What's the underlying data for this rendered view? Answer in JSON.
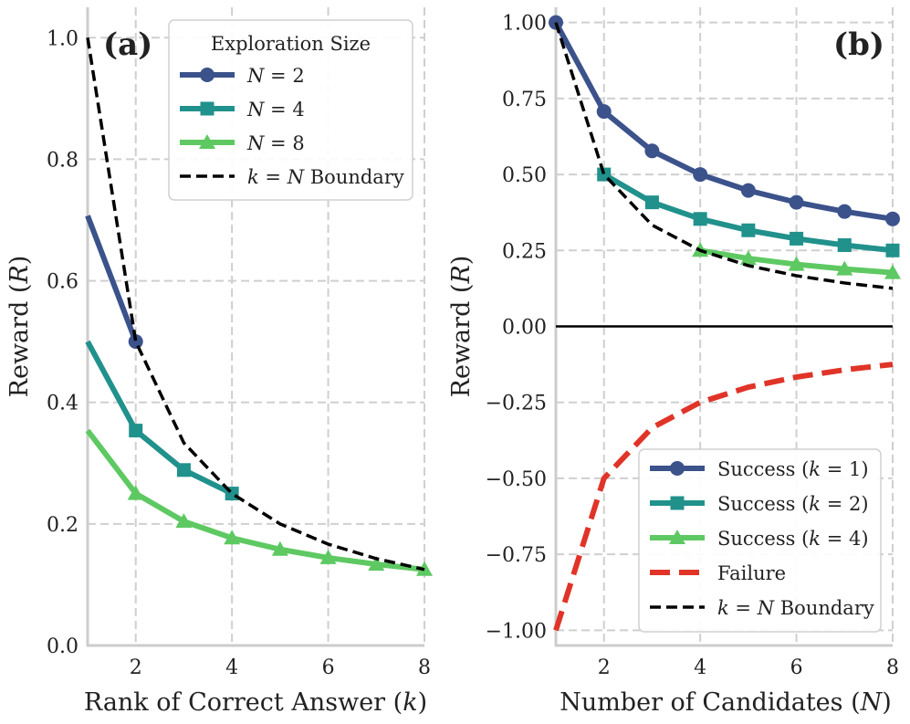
{
  "colors": {
    "n2": "#3b528b",
    "n4": "#21918c",
    "n8": "#5ec962",
    "failure": "#e03428",
    "boundary": "#000000",
    "grid": "#cfcfcf",
    "spine": "#cccccc",
    "zero_line": "#000000"
  },
  "chart_data": [
    {
      "type": "line",
      "panel_label": "(a)",
      "xlabel": "Rank of Correct Answer (",
      "xlabel_var": "k",
      "xlabel_end": ")",
      "ylabel": "Reward (",
      "ylabel_var": "R",
      "ylabel_end": ")",
      "xlim": [
        1,
        8
      ],
      "ylim": [
        0,
        1.05
      ],
      "xticks": [
        2,
        4,
        6,
        8
      ],
      "xtick_labels": [
        "2",
        "4",
        "6",
        "8"
      ],
      "yticks": [
        0,
        0.2,
        0.4,
        0.6,
        0.8,
        1.0
      ],
      "ytick_labels": [
        "0.0",
        "0.2",
        "0.4",
        "0.6",
        "0.8",
        "1.0"
      ],
      "grid": true,
      "legend_title": "Exploration Size",
      "legend_position": "top-right",
      "series": [
        {
          "name_var": "N",
          "name_eq": " = ",
          "name_val": "2",
          "color_key": "n2",
          "marker": "circle",
          "style": "solid",
          "x": [
            1,
            2
          ],
          "y": [
            0.7071,
            0.5
          ],
          "marker_x": [
            2
          ]
        },
        {
          "name_var": "N",
          "name_eq": " = ",
          "name_val": "4",
          "color_key": "n4",
          "marker": "square",
          "style": "solid",
          "x": [
            1,
            2,
            3,
            4
          ],
          "y": [
            0.5,
            0.3536,
            0.2887,
            0.25
          ],
          "marker_x": [
            2,
            3,
            4
          ]
        },
        {
          "name_var": "N",
          "name_eq": " = ",
          "name_val": "8",
          "color_key": "n8",
          "marker": "triangle",
          "style": "solid",
          "x": [
            1,
            2,
            3,
            4,
            5,
            6,
            7,
            8
          ],
          "y": [
            0.3536,
            0.25,
            0.2041,
            0.1768,
            0.1581,
            0.1443,
            0.1336,
            0.125
          ],
          "marker_x": [
            2,
            3,
            4,
            5,
            6,
            7,
            8
          ]
        },
        {
          "name_var": "k",
          "name_eq": " = ",
          "name_val": "N",
          "name_suffix": " Boundary",
          "color_key": "boundary",
          "marker": "none",
          "style": "dashed",
          "x": [
            1,
            2,
            3,
            4,
            5,
            6,
            7,
            8
          ],
          "y": [
            1.0,
            0.5,
            0.3333,
            0.25,
            0.2,
            0.1667,
            0.1429,
            0.125
          ],
          "marker_x": []
        }
      ]
    },
    {
      "type": "line",
      "panel_label": "(b)",
      "xlabel": "Number of Candidates (",
      "xlabel_var": "N",
      "xlabel_end": ")",
      "ylabel": "Reward (",
      "ylabel_var": "R",
      "ylabel_end": ")",
      "xlim": [
        1,
        8
      ],
      "ylim": [
        -1.05,
        1.05
      ],
      "xticks": [
        2,
        4,
        6,
        8
      ],
      "xtick_labels": [
        "2",
        "4",
        "6",
        "8"
      ],
      "yticks": [
        -1.0,
        -0.75,
        -0.5,
        -0.25,
        0.0,
        0.25,
        0.5,
        0.75,
        1.0
      ],
      "ytick_labels": [
        "−1.00",
        "−0.75",
        "−0.50",
        "−0.25",
        "0.00",
        "0.25",
        "0.50",
        "0.75",
        "1.00"
      ],
      "grid": true,
      "zero_line": true,
      "legend_position": "bottom-right",
      "series": [
        {
          "name_prefix": "Success (",
          "name_var": "k",
          "name_eq": " = ",
          "name_val": "1",
          "name_suffix": ")",
          "color_key": "n2",
          "marker": "circle",
          "style": "solid",
          "x": [
            1,
            2,
            3,
            4,
            5,
            6,
            7,
            8
          ],
          "y": [
            1.0,
            0.7071,
            0.5774,
            0.5,
            0.4472,
            0.4082,
            0.378,
            0.3536
          ],
          "marker_x": [
            1,
            2,
            3,
            4,
            5,
            6,
            7,
            8
          ]
        },
        {
          "name_prefix": "Success (",
          "name_var": "k",
          "name_eq": " = ",
          "name_val": "2",
          "name_suffix": ")",
          "color_key": "n4",
          "marker": "square",
          "style": "solid",
          "x": [
            2,
            3,
            4,
            5,
            6,
            7,
            8
          ],
          "y": [
            0.5,
            0.4082,
            0.3536,
            0.3162,
            0.2887,
            0.2673,
            0.25
          ],
          "marker_x": [
            2,
            3,
            4,
            5,
            6,
            7,
            8
          ]
        },
        {
          "name_prefix": "Success (",
          "name_var": "k",
          "name_eq": " = ",
          "name_val": "4",
          "name_suffix": ")",
          "color_key": "n8",
          "marker": "triangle",
          "style": "solid",
          "x": [
            4,
            5,
            6,
            7,
            8
          ],
          "y": [
            0.25,
            0.2236,
            0.2041,
            0.189,
            0.1768
          ],
          "marker_x": [
            4,
            5,
            6,
            7,
            8
          ]
        },
        {
          "name_prefix": "Failure",
          "color_key": "failure",
          "marker": "none",
          "style": "bigdash",
          "x": [
            1,
            2,
            3,
            4,
            5,
            6,
            7,
            8
          ],
          "y": [
            -1.0,
            -0.5,
            -0.3333,
            -0.25,
            -0.2,
            -0.1667,
            -0.1429,
            -0.125
          ],
          "marker_x": []
        },
        {
          "name_var": "k",
          "name_eq": " = ",
          "name_val": "N",
          "name_suffix": " Boundary",
          "color_key": "boundary",
          "marker": "none",
          "style": "dashed",
          "x": [
            1,
            2,
            3,
            4,
            5,
            6,
            7,
            8
          ],
          "y": [
            1.0,
            0.5,
            0.3333,
            0.25,
            0.2,
            0.1667,
            0.1429,
            0.125
          ],
          "marker_x": []
        }
      ]
    }
  ]
}
